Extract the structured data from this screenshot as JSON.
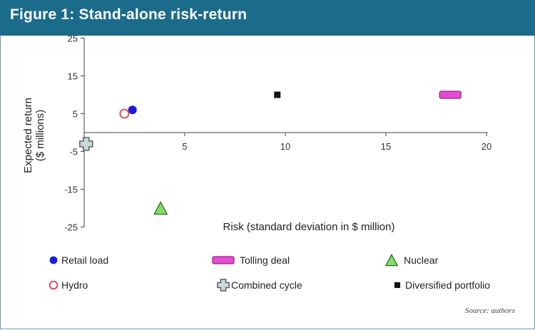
{
  "header": {
    "title": "Figure 1: Stand-alone risk-return"
  },
  "chart_data": {
    "type": "scatter",
    "title": "Figure 1: Stand-alone risk-return",
    "xlabel": "Risk (standard deviation in $ million)",
    "ylabel_lines": [
      "Expected return",
      "($ millions)"
    ],
    "xlim": [
      0,
      20
    ],
    "ylim": [
      -25,
      25
    ],
    "x_ticks": [
      5,
      10,
      15,
      20
    ],
    "y_ticks": [
      25,
      15,
      5,
      -5,
      -15,
      -25
    ],
    "grid": false,
    "legend_position": "bottom",
    "series": [
      {
        "name": "Retail load",
        "marker": "circle",
        "color": "#1a1adb",
        "points": [
          {
            "x": 2.4,
            "y": 6
          }
        ]
      },
      {
        "name": "Tolling deal",
        "marker": "bar",
        "color": "#e64bd6",
        "points": [
          {
            "x": 18.2,
            "y": 10
          }
        ]
      },
      {
        "name": "Nuclear",
        "marker": "triangle",
        "color": "#7fe06a",
        "points": [
          {
            "x": 3.8,
            "y": -20
          }
        ]
      },
      {
        "name": "Hydro",
        "marker": "open-circle",
        "color": "#e0404f",
        "points": [
          {
            "x": 2.0,
            "y": 5
          }
        ]
      },
      {
        "name": "Combined cycle",
        "marker": "plus",
        "color": "#c8d8dc",
        "points": [
          {
            "x": 0.1,
            "y": -3
          }
        ]
      },
      {
        "name": "Diversified portfolio",
        "marker": "square",
        "color": "#111111",
        "points": [
          {
            "x": 9.6,
            "y": 10
          }
        ]
      }
    ]
  },
  "legend": [
    {
      "label": "Retail load",
      "icon": "blue-circle-icon"
    },
    {
      "label": "Tolling deal",
      "icon": "magenta-bar-icon"
    },
    {
      "label": "Nuclear",
      "icon": "green-triangle-icon"
    },
    {
      "label": "Hydro",
      "icon": "red-open-circle-icon"
    },
    {
      "label": "Combined cycle",
      "icon": "grey-plus-icon"
    },
    {
      "label": "Diversified portfolio",
      "icon": "black-square-icon"
    }
  ],
  "source": "Source: authors"
}
